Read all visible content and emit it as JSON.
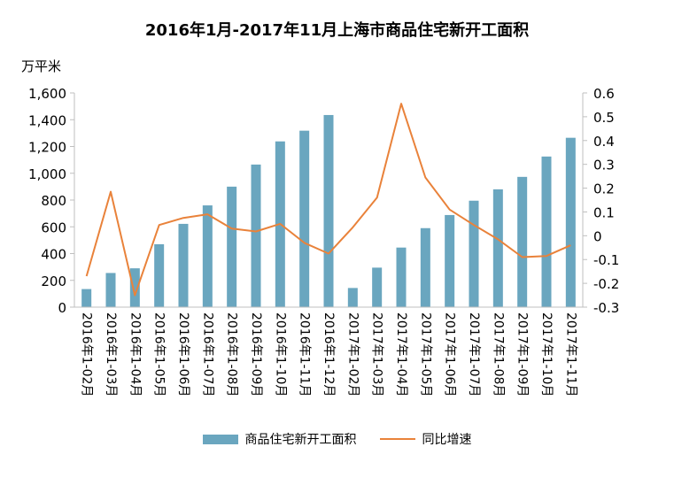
{
  "colors": {
    "bar": "#6aa6bf",
    "line": "#e9823a",
    "axis": "#bfbfbf"
  },
  "chart_data": {
    "type": "bar",
    "title": "2016年1月-2017年11月上海市商品住宅新开工面积",
    "y_unit_label": "万平米",
    "categories": [
      "2016年1-02月",
      "2016年1-03月",
      "2016年1-04月",
      "2016年1-05月",
      "2016年1-06月",
      "2016年1-07月",
      "2016年1-08月",
      "2016年1-09月",
      "2016年1-10月",
      "2016年1-11月",
      "2016年1-12月",
      "2017年1-02月",
      "2017年1-03月",
      "2017年1-04月",
      "2017年1-05月",
      "2017年1-06月",
      "2017年1-07月",
      "2017年1-08月",
      "2017年1-09月",
      "2017年1-10月",
      "2017年1-11月"
    ],
    "series": [
      {
        "name": "商品住宅新开工面积",
        "type": "bar",
        "axis": "left",
        "values": [
          135,
          255,
          290,
          470,
          622,
          760,
          900,
          1065,
          1238,
          1318,
          1435,
          143,
          295,
          445,
          590,
          688,
          795,
          880,
          973,
          1125,
          1265
        ]
      },
      {
        "name": "同比增速",
        "type": "line",
        "axis": "right",
        "values": [
          -0.17,
          0.185,
          -0.25,
          0.045,
          0.075,
          0.09,
          0.03,
          0.018,
          0.05,
          -0.03,
          -0.075,
          0.035,
          0.16,
          0.555,
          0.245,
          0.11,
          0.045,
          -0.015,
          -0.09,
          -0.085,
          -0.04
        ]
      }
    ],
    "ylim_left": [
      0,
      1600
    ],
    "yticks_left": [
      "0",
      "200",
      "400",
      "600",
      "800",
      "1,000",
      "1,200",
      "1,400",
      "1,600"
    ],
    "ylim_right": [
      -0.3,
      0.6
    ],
    "yticks_right": [
      "-0.3",
      "-0.2",
      "-0.1",
      "0",
      "0.1",
      "0.2",
      "0.3",
      "0.4",
      "0.5",
      "0.6"
    ],
    "legend": [
      "商品住宅新开工面积",
      "同比增速"
    ],
    "legend_position": "bottom"
  }
}
